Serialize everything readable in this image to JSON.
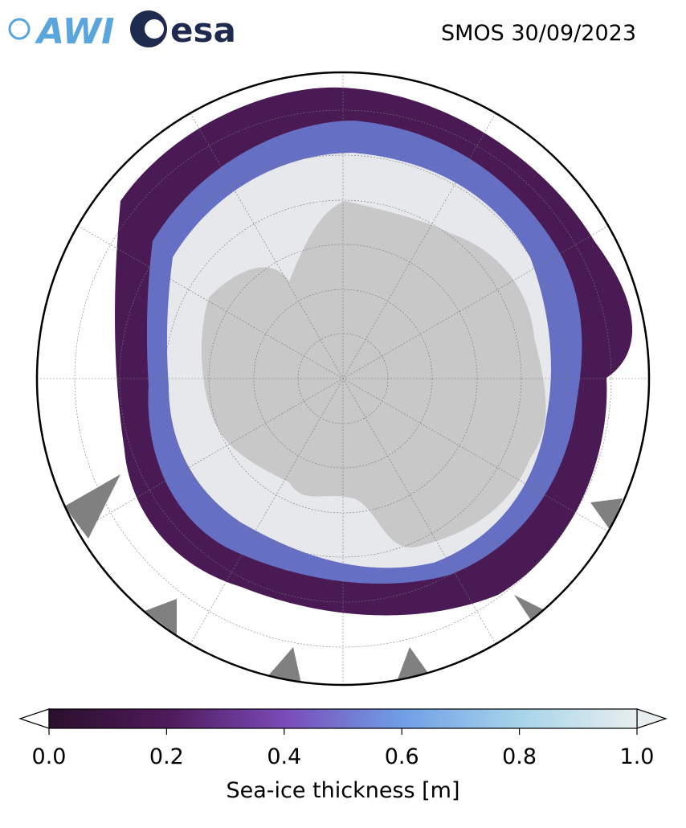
{
  "header": {
    "title": "SMOS 30/09/2023",
    "logos": [
      "AWI",
      "esa"
    ]
  },
  "colorbar": {
    "label": "Sea-ice thickness [m]",
    "lim": [
      0,
      1
    ],
    "ticks": [
      {
        "value": 0,
        "label": "0.0"
      },
      {
        "value": 0.2,
        "label": "0.2"
      },
      {
        "value": 0.4,
        "label": "0.4"
      },
      {
        "value": 0.6,
        "label": "0.6"
      },
      {
        "value": 0.8,
        "label": "0.8"
      },
      {
        "value": 1,
        "label": "1.0"
      }
    ],
    "colors": [
      "#2a0f2c",
      "#4e1a5a",
      "#7a4bb8",
      "#6f9ee6",
      "#a6d4ea",
      "#e8eeee"
    ]
  }
}
